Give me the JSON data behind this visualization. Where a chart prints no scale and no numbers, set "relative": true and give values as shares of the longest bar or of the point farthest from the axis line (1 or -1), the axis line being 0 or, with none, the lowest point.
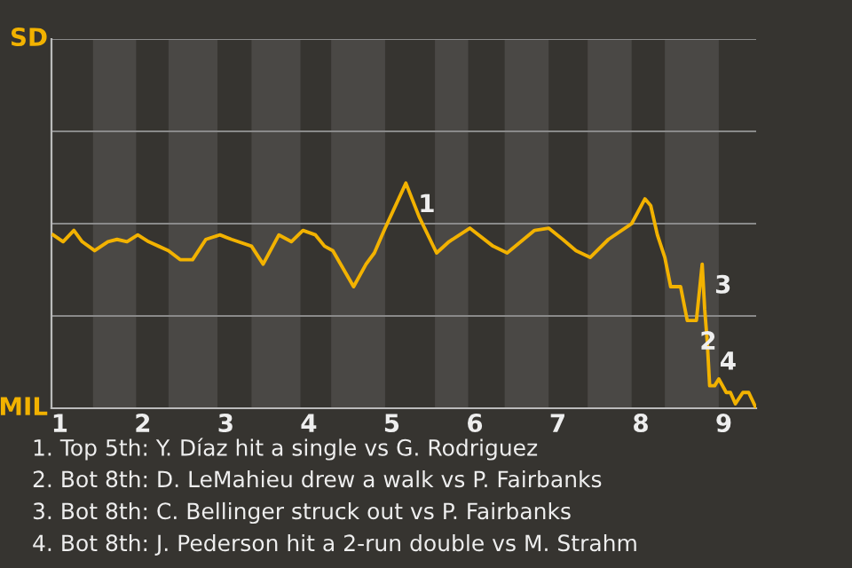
{
  "chart_data": {
    "type": "line",
    "relative": true,
    "x": [
      0.92,
      1.04,
      1.17,
      1.27,
      1.42,
      1.58,
      1.69,
      1.81,
      1.94,
      2.07,
      2.19,
      2.31,
      2.45,
      2.6,
      2.76,
      2.93,
      3.07,
      3.31,
      3.45,
      3.64,
      3.79,
      3.93,
      4.08,
      4.19,
      4.29,
      4.54,
      4.69,
      4.79,
      4.92,
      5.17,
      5.33,
      5.54,
      5.69,
      5.94,
      6.22,
      6.39,
      6.72,
      6.89,
      7.06,
      7.22,
      7.39,
      7.61,
      7.89,
      8.05,
      8.12,
      8.2,
      8.29,
      8.36,
      8.48,
      8.56,
      8.67,
      8.74,
      8.77,
      8.8,
      8.83,
      8.89,
      8.94,
      9.03,
      9.08,
      9.14,
      9.23,
      9.3,
      9.39
    ],
    "series": [
      {
        "color": "#f2b200",
        "values": [
          0.77,
          0.74,
          0.79,
          0.74,
          0.7,
          0.74,
          0.75,
          0.74,
          0.77,
          0.74,
          0.72,
          0.7,
          0.66,
          0.66,
          0.75,
          0.77,
          0.75,
          0.72,
          0.64,
          0.77,
          0.74,
          0.79,
          0.77,
          0.72,
          0.7,
          0.54,
          0.64,
          0.69,
          0.8,
          1,
          0.85,
          0.69,
          0.74,
          0.8,
          0.72,
          0.69,
          0.79,
          0.8,
          0.75,
          0.7,
          0.67,
          0.75,
          0.82,
          0.93,
          0.9,
          0.77,
          0.67,
          0.54,
          0.54,
          0.39,
          0.39,
          0.64,
          0.44,
          0.3,
          0.1,
          0.1,
          0.13,
          0.07,
          0.07,
          0.02,
          0.07,
          0.07,
          0
        ]
      }
    ],
    "xlim": [
      0.9,
      9.39
    ],
    "xticks": [
      1,
      2,
      3,
      4,
      5,
      6,
      7,
      8,
      9
    ],
    "ref_lines": [
      {
        "axis": "y",
        "value": 0.41,
        "color": "#8a8a8a"
      },
      {
        "axis": "y",
        "value": 0.82,
        "color": "#8a8a8a"
      },
      {
        "axis": "y",
        "value": 1.23,
        "color": "#8a8a8a"
      },
      {
        "axis": "y",
        "value": 1.64,
        "color": "#8a8a8a"
      }
    ],
    "marker": "none",
    "line_style": "solid",
    "bands": [
      {
        "axis": "x",
        "from": 1.4,
        "to": 1.92,
        "color": "#4a4845"
      },
      {
        "axis": "x",
        "from": 2.31,
        "to": 2.9,
        "color": "#4a4845"
      },
      {
        "axis": "x",
        "from": 3.31,
        "to": 3.9,
        "color": "#4a4845"
      },
      {
        "axis": "x",
        "from": 4.27,
        "to": 4.92,
        "color": "#4a4845"
      },
      {
        "axis": "x",
        "from": 5.52,
        "to": 5.92,
        "color": "#4a4845"
      },
      {
        "axis": "x",
        "from": 6.36,
        "to": 6.89,
        "color": "#4a4845"
      },
      {
        "axis": "x",
        "from": 7.36,
        "to": 7.89,
        "color": "#4a4845"
      },
      {
        "axis": "x",
        "from": 8.29,
        "to": 8.94,
        "color": "#4a4845"
      }
    ],
    "annotations": [
      "SD",
      "MIL",
      {
        "text": "1",
        "x": 5.17,
        "y": 1
      },
      {
        "text": "2",
        "x": 8.56,
        "y": 0.39
      },
      {
        "text": "3",
        "x": 8.74,
        "y": 0.64
      },
      {
        "text": "4",
        "x": 8.8,
        "y": 0.3
      },
      "1. Top 5th: Y. Díaz hit a single vs G. Rodriguez",
      "2. Bot 8th: D. LeMahieu drew a walk vs P. Fairbanks",
      "3. Bot 8th: C. Bellinger struck out vs P. Fairbanks",
      "4. Bot 8th: J. Pederson hit a 2-run double vs M. Strahm"
    ]
  }
}
